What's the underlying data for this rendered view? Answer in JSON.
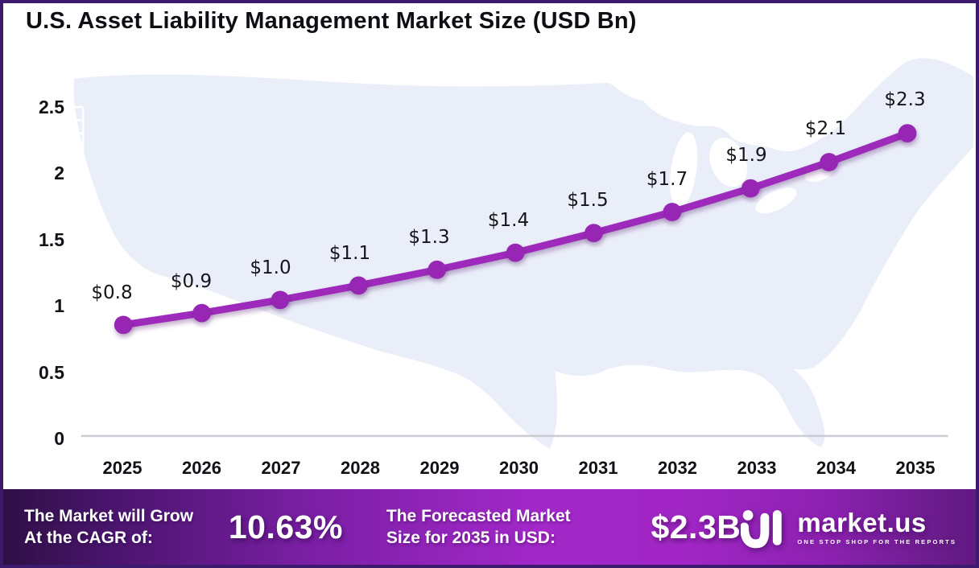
{
  "title": "U.S. Asset Liability Management Market Size (USD Bn)",
  "chart_data": {
    "type": "line",
    "x": [
      "2025",
      "2026",
      "2027",
      "2028",
      "2029",
      "2030",
      "2031",
      "2032",
      "2033",
      "2034",
      "2035"
    ],
    "labels": [
      "$0.8",
      "$0.9",
      "$1.0",
      "$1.1",
      "$1.3",
      "$1.4",
      "$1.5",
      "$1.7",
      "$1.9",
      "$2.1",
      "$2.3"
    ],
    "values": [
      0.8,
      0.9,
      1.0,
      1.1,
      1.3,
      1.4,
      1.5,
      1.7,
      1.9,
      2.1,
      2.3
    ],
    "values_plotted": [
      0.84,
      0.93,
      1.03,
      1.14,
      1.26,
      1.39,
      1.54,
      1.7,
      1.88,
      2.08,
      2.3
    ],
    "title": "U.S. Asset Liability Management Market Size (USD Bn)",
    "xlabel": "",
    "ylabel": "",
    "ylim": [
      0,
      2.5
    ],
    "yticks": [
      "0",
      "0.5",
      "1",
      "1.5",
      "2",
      "2.5"
    ],
    "grid": false,
    "legend": null,
    "line_color": "#9d2cbb",
    "marker_color": "#9626b3"
  },
  "banner": {
    "cagr_label": "The Market will Grow At the CAGR of:",
    "cagr_value": "10.63%",
    "forecast_label": "The Forecasted Market Size for 2035 in USD:",
    "forecast_value": "$2.3B",
    "logo_text": "market.us",
    "logo_tagline": "ONE STOP SHOP FOR THE REPORTS"
  },
  "colors": {
    "line": "#9d2cbb",
    "marker": "#9626b3",
    "map_fill": "#eaeef8",
    "border": "#3c1a6e",
    "baseline": "#caccd2",
    "banner_dark": "#2f1046",
    "banner_bright": "#a228c8",
    "text": "#101016"
  }
}
